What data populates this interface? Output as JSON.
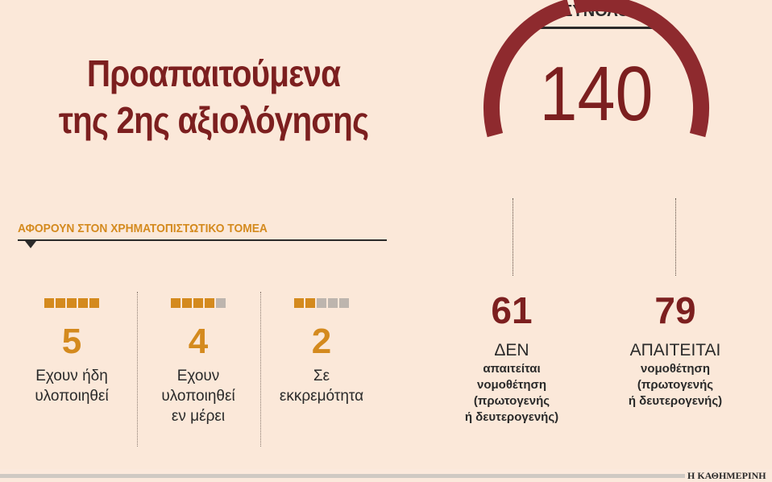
{
  "title_line1": "Προαπαιτούμενα",
  "title_line2": "της 2ης αξιολόγησης",
  "section_label": "ΑΦΟΡΟΥΝ ΣΤΟΝ ΧΡΗΜΑΤΟΠΙΣΤΩΤΙΚΟ ΤΟΜΕΑ",
  "financial_items": [
    {
      "value": "5",
      "filled": 5,
      "of": 5,
      "line1": "Εχουν ήδη",
      "line2": "υλοποιηθεί",
      "line3": ""
    },
    {
      "value": "4",
      "filled": 4,
      "of": 5,
      "line1": "Εχουν",
      "line2": "υλοποιηθεί",
      "line3": "εν μέρει"
    },
    {
      "value": "2",
      "filled": 2,
      "of": 5,
      "line1": "Σε",
      "line2": "εκκρεμότητα",
      "line3": ""
    }
  ],
  "total_label": "ΣΥΝΟΛΟ",
  "total_value": "140",
  "split": {
    "left": {
      "value": "61",
      "main": "ΔΕΝ",
      "sub1": "απαιτείται",
      "sub2": "νομοθέτηση",
      "sub3": "(πρωτογενής",
      "sub4": "ή δευτερογενής)"
    },
    "right": {
      "value": "79",
      "main": "ΑΠΑΙΤΕΙΤΑΙ",
      "sub1": "νομοθέτηση",
      "sub2": "(πρωτογενής",
      "sub3": "ή δευτερογενής)"
    }
  },
  "credit": "Η ΚΑΘΗΜΕΡΙΝΗ",
  "colors": {
    "maroon": "#7c1f1f",
    "arc": "#8e2a2e",
    "orange": "#d48a1e",
    "grey_square": "#bdb5ae",
    "background": "#fbe8d9"
  },
  "chart_data": [
    {
      "type": "pie",
      "title": "ΣΥΝΟΛΟ",
      "total": 140,
      "categories": [
        "ΔΕΝ απαιτείται νομοθέτηση (πρωτογενής ή δευτερογενής)",
        "ΑΠΑΙΤΕΙΤΑΙ νομοθέτηση (πρωτογενής ή δευτερογενής)"
      ],
      "values": [
        61,
        79
      ],
      "style": "half-donut"
    },
    {
      "type": "bar",
      "title": "ΑΦΟΡΟΥΝ ΣΤΟΝ ΧΡΗΜΑΤΟΠΙΣΤΩΤΙΚΟ ΤΟΜΕΑ",
      "categories": [
        "Εχουν ήδη υλοποιηθεί",
        "Εχουν υλοποιηθεί εν μέρει",
        "Σε εκκρεμότητα"
      ],
      "values": [
        5,
        4,
        2
      ],
      "style": "square-pictogram",
      "max_units": 5
    }
  ]
}
